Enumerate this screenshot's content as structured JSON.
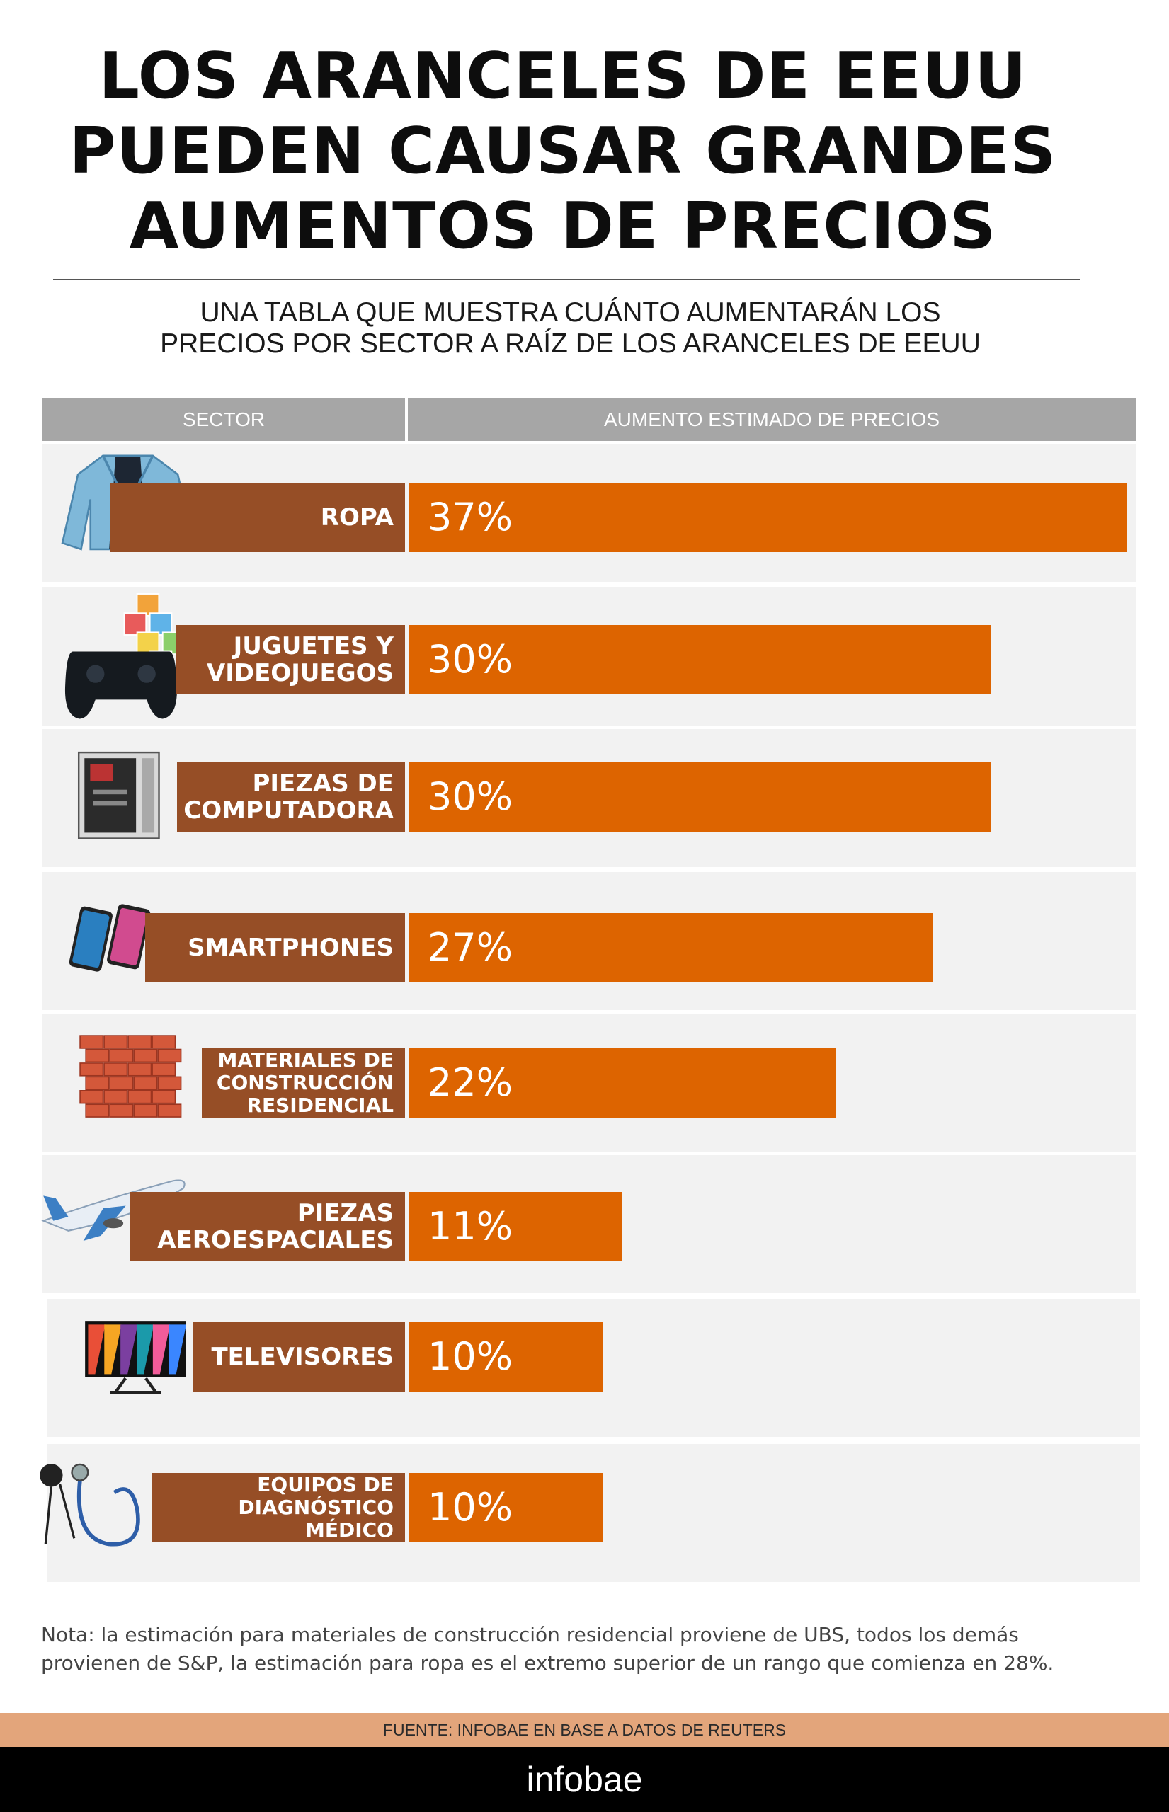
{
  "title_lines": [
    "LOS ARANCELES DE EEUU",
    "PUEDEN CAUSAR GRANDES",
    "AUMENTOS DE PRECIOS"
  ],
  "subtitle_lines": [
    "UNA TABLA QUE MUESTRA CUÁNTO AUMENTARÁN LOS",
    "PRECIOS POR SECTOR A RAÍZ DE LOS ARANCELES DE EEUU"
  ],
  "columns": {
    "sector": "SECTOR",
    "increase": "AUMENTO ESTIMADO DE PRECIOS"
  },
  "colors": {
    "bar": "#dd6400",
    "label_box": "#964e26",
    "row_bg": "#f2f2f2",
    "header": "#a6a6a6",
    "source_bar": "#e3a57b"
  },
  "chart_data": {
    "type": "bar",
    "orientation": "horizontal",
    "categories": [
      "ROPA",
      "JUGUETES Y VIDEOJUEGOS",
      "PIEZAS DE COMPUTADORA",
      "SMARTPHONES",
      "MATERIALES DE CONSTRUCCIÓN RESIDENCIAL",
      "PIEZAS AEROESPACIALES",
      "TELEVISORES",
      "EQUIPOS DE DIAGNÓSTICO MÉDICO"
    ],
    "values": [
      37,
      30,
      30,
      27,
      22,
      11,
      10,
      10
    ],
    "value_labels": [
      "37%",
      "30%",
      "30%",
      "27%",
      "22%",
      "11%",
      "10%",
      "10%"
    ],
    "category_lines": [
      [
        "ROPA"
      ],
      [
        "JUGUETES Y",
        "VIDEOJUEGOS"
      ],
      [
        "PIEZAS DE",
        "COMPUTADORA"
      ],
      [
        "SMARTPHONES"
      ],
      [
        "MATERIALES DE",
        "CONSTRUCCIÓN",
        "RESIDENCIAL"
      ],
      [
        "PIEZAS",
        "AEROESPACIALES"
      ],
      [
        "TELEVISORES"
      ],
      [
        "EQUIPOS DE",
        "DIAGNÓSTICO MÉDICO"
      ]
    ],
    "icons": [
      "denim-jacket-icon",
      "gamepad-and-blocks-icon",
      "computer-tower-icon",
      "smartphones-icon",
      "bricks-icon",
      "airplane-icon",
      "television-icon",
      "stethoscope-icon"
    ],
    "xlim": [
      0,
      37
    ],
    "grid": false,
    "legend": "none"
  },
  "note_lines": [
    "Nota: la estimación para materiales de construcción residencial proviene de UBS, todos los demás",
    "provienen de S&P, la estimación para ropa es el extremo superior de un rango que comienza en 28%."
  ],
  "source": "FUENTE: INFOBAE EN BASE A DATOS DE REUTERS",
  "brand": "infobae"
}
